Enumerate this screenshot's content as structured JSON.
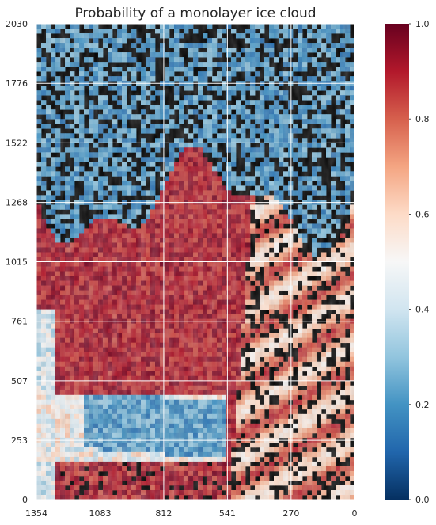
{
  "chart_data": {
    "type": "heatmap",
    "title": "Probability of a monolayer ice cloud",
    "xlabel": "",
    "ylabel": "",
    "x_ticks": [
      "1354",
      "1083",
      "812",
      "541",
      "270",
      "0"
    ],
    "y_ticks": [
      "0",
      "253",
      "507",
      "761",
      "1015",
      "1268",
      "1522",
      "1776",
      "2030"
    ],
    "xlim": [
      1354,
      0
    ],
    "ylim": [
      0,
      2030
    ],
    "grid": true,
    "colormap": "RdBu_r",
    "colorbar": {
      "range": [
        0.0,
        1.0
      ],
      "ticks": [
        "0.0",
        "0.2",
        "0.4",
        "0.6",
        "0.8",
        "1.0"
      ],
      "colors": [
        "#053061",
        "#2166ac",
        "#4393c3",
        "#92c5de",
        "#d1e5f0",
        "#f7f7f7",
        "#fddbc7",
        "#f4a582",
        "#d6604d",
        "#b2182b",
        "#67001f"
      ]
    },
    "regions": [
      {
        "label": "upper region",
        "probability": 0.2
      },
      {
        "label": "central region",
        "probability": 0.9
      },
      {
        "label": "right-centre region",
        "probability": 0.65
      },
      {
        "label": "lower-left region",
        "probability": 0.3
      },
      {
        "label": "bottom region",
        "probability": 0.85
      }
    ],
    "no_data_color": "#000000"
  }
}
